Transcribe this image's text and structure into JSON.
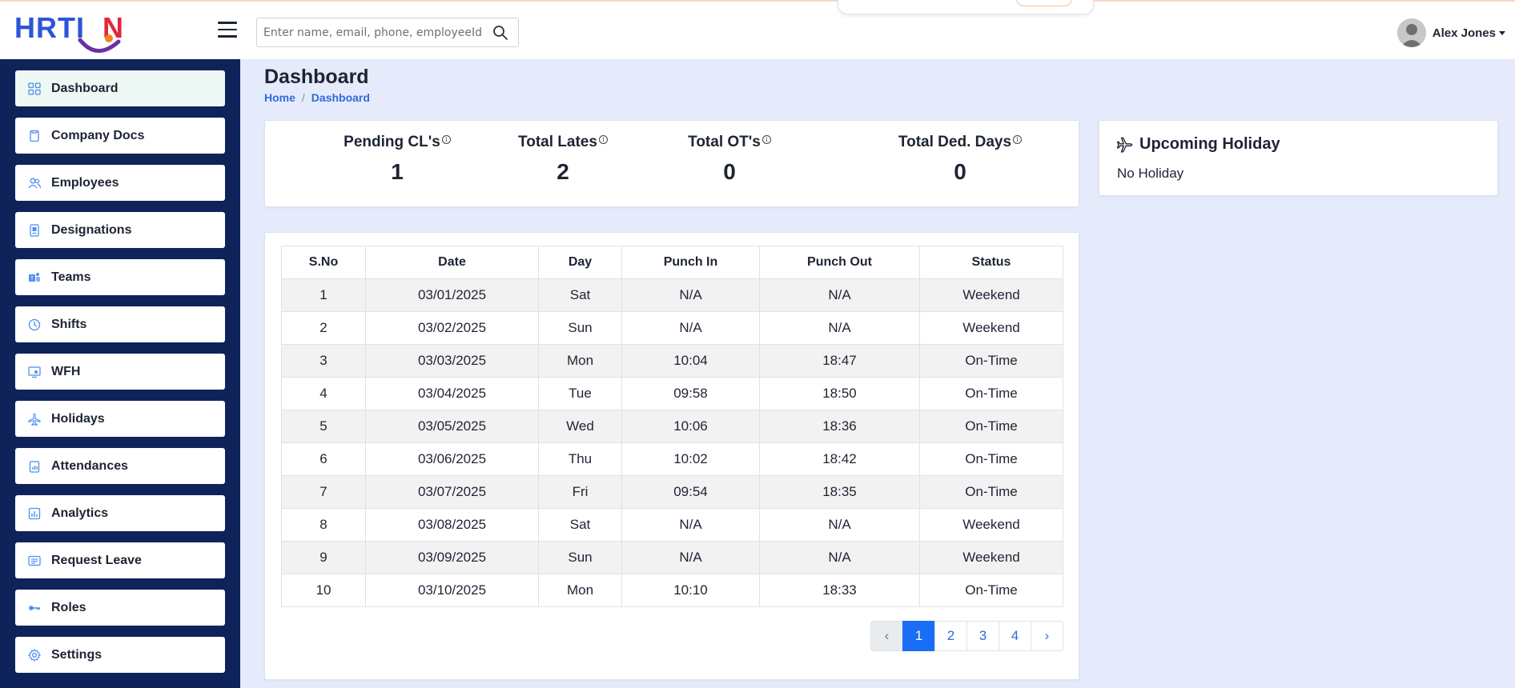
{
  "header": {
    "logo_prefix": "HRTI",
    "logo_suffix": "N",
    "search_placeholder": "Enter name, email, phone, employeeId",
    "user_name": "Alex Jones"
  },
  "sidebar": {
    "items": [
      {
        "label": "Dashboard",
        "icon": "grid-icon"
      },
      {
        "label": "Company Docs",
        "icon": "document-icon"
      },
      {
        "label": "Employees",
        "icon": "users-icon"
      },
      {
        "label": "Designations",
        "icon": "id-badge-icon"
      },
      {
        "label": "Teams",
        "icon": "teams-icon"
      },
      {
        "label": "Shifts",
        "icon": "clock-icon"
      },
      {
        "label": "WFH",
        "icon": "monitor-icon"
      },
      {
        "label": "Holidays",
        "icon": "plane-icon"
      },
      {
        "label": "Attendances",
        "icon": "clipboard-chart-icon"
      },
      {
        "label": "Analytics",
        "icon": "analytics-icon"
      },
      {
        "label": "Request Leave",
        "icon": "list-card-icon"
      },
      {
        "label": "Roles",
        "icon": "key-icon"
      },
      {
        "label": "Settings",
        "icon": "gear-icon"
      }
    ],
    "active": "Dashboard"
  },
  "page": {
    "title": "Dashboard",
    "breadcrumb": [
      "Home",
      "Dashboard"
    ]
  },
  "stats": [
    {
      "label": "Pending CL's",
      "value": "1"
    },
    {
      "label": "Total Lates",
      "value": "2"
    },
    {
      "label": "Total OT's",
      "value": "0"
    },
    {
      "label": "Total Ded. Days",
      "value": "0"
    }
  ],
  "holiday": {
    "title": "Upcoming Holiday",
    "body": "No Holiday"
  },
  "table": {
    "columns": [
      "S.No",
      "Date",
      "Day",
      "Punch In",
      "Punch Out",
      "Status"
    ],
    "rows": [
      [
        "1",
        "03/01/2025",
        "Sat",
        "N/A",
        "N/A",
        "Weekend"
      ],
      [
        "2",
        "03/02/2025",
        "Sun",
        "N/A",
        "N/A",
        "Weekend"
      ],
      [
        "3",
        "03/03/2025",
        "Mon",
        "10:04",
        "18:47",
        "On-Time"
      ],
      [
        "4",
        "03/04/2025",
        "Tue",
        "09:58",
        "18:50",
        "On-Time"
      ],
      [
        "5",
        "03/05/2025",
        "Wed",
        "10:06",
        "18:36",
        "On-Time"
      ],
      [
        "6",
        "03/06/2025",
        "Thu",
        "10:02",
        "18:42",
        "On-Time"
      ],
      [
        "7",
        "03/07/2025",
        "Fri",
        "09:54",
        "18:35",
        "On-Time"
      ],
      [
        "8",
        "03/08/2025",
        "Sat",
        "N/A",
        "N/A",
        "Weekend"
      ],
      [
        "9",
        "03/09/2025",
        "Sun",
        "N/A",
        "N/A",
        "Weekend"
      ],
      [
        "10",
        "03/10/2025",
        "Mon",
        "10:10",
        "18:33",
        "On-Time"
      ]
    ]
  },
  "pagination": {
    "prev": "‹",
    "pages": [
      "1",
      "2",
      "3",
      "4"
    ],
    "current": "1",
    "next": "›"
  },
  "colors": {
    "sidebar_bg": "#0f235b",
    "page_bg": "#e5ebfb",
    "accent": "#1a6ef5",
    "link": "#2e6bd8",
    "logo_blue": "#2e55d6",
    "logo_red": "#e0283a",
    "logo_purple": "#6b2fa6"
  }
}
